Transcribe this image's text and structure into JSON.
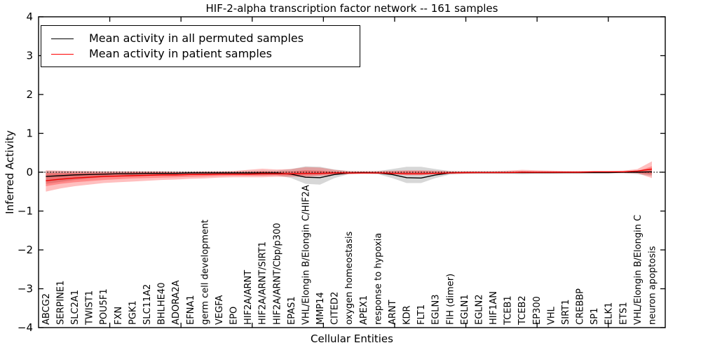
{
  "title": "HIF-2-alpha transcription factor network -- 161 samples",
  "legend": {
    "items": [
      {
        "label": "Mean activity in all permuted samples",
        "color": "#000000"
      },
      {
        "label": "Mean activity in patient samples",
        "color": "#ff0000"
      }
    ]
  },
  "chart_data": {
    "type": "line",
    "title": "HIF-2-alpha transcription factor network -- 161 samples",
    "xlabel": "Cellular Entities",
    "ylabel": "Inferred Activity",
    "ylim": [
      -4,
      4
    ],
    "yticks": [
      -4,
      -3,
      -2,
      -1,
      0,
      1,
      2,
      3,
      4
    ],
    "grid": false,
    "legend_position": "upper left",
    "categories": [
      "ABCG2",
      "SERPINE1",
      "SLC2A1",
      "TWIST1",
      "POU5F1",
      "FXN",
      "PGK1",
      "SLC11A2",
      "BHLHE40",
      "ADORA2A",
      "EFNA1",
      "germ cell development",
      "VEGFA",
      "EPO",
      "HIF2A/ARNT",
      "HIF2A/ARNT/SIRT1",
      "HIF2A/ARNT/Cbp/p300",
      "EPAS1",
      "VHL/Elongin B/Elongin C/HIF2A",
      "MMP14",
      "CITED2",
      "oxygen homeostasis",
      "APEX1",
      "response to hypoxia",
      "ARNT",
      "KDR",
      "FLT1",
      "EGLN3",
      "FIH (dimer)",
      "EGLN1",
      "EGLN2",
      "HIF1AN",
      "TCEB1",
      "TCEB2",
      "EP300",
      "VHL",
      "SIRT1",
      "CREBBP",
      "SP1",
      "ELK1",
      "ETS1",
      "VHL/Elongin B/Elongin C",
      "neuron apoptosis"
    ],
    "series": [
      {
        "name": "Mean activity in all permuted samples",
        "color": "#000000",
        "values": [
          -0.11,
          -0.09,
          -0.07,
          -0.06,
          -0.05,
          -0.04,
          -0.04,
          -0.03,
          -0.03,
          -0.03,
          -0.02,
          -0.02,
          -0.02,
          -0.02,
          -0.02,
          -0.02,
          -0.02,
          -0.05,
          -0.13,
          -0.14,
          -0.06,
          -0.02,
          -0.01,
          -0.02,
          -0.06,
          -0.14,
          -0.15,
          -0.07,
          -0.02,
          -0.01,
          -0.01,
          -0.01,
          -0.01,
          -0.01,
          -0.01,
          -0.01,
          -0.01,
          -0.01,
          -0.01,
          -0.01,
          0.0,
          0.0,
          0.01
        ]
      },
      {
        "name": "Mean activity in patient samples",
        "color": "#ee0000",
        "values": [
          -0.22,
          -0.18,
          -0.15,
          -0.13,
          -0.11,
          -0.1,
          -0.09,
          -0.08,
          -0.07,
          -0.07,
          -0.06,
          -0.06,
          -0.05,
          -0.05,
          -0.05,
          -0.04,
          -0.04,
          -0.04,
          -0.03,
          -0.03,
          -0.02,
          -0.02,
          -0.02,
          -0.02,
          -0.03,
          -0.04,
          -0.04,
          -0.03,
          -0.02,
          -0.01,
          -0.01,
          -0.01,
          -0.01,
          0.0,
          0.0,
          0.0,
          0.0,
          0.0,
          0.01,
          0.01,
          0.01,
          0.03,
          0.08
        ]
      }
    ],
    "bands": [
      {
        "name": "permuted-samples-band",
        "color": "rgba(130,130,130,0.32)",
        "upper": [
          0.03,
          0.03,
          0.03,
          0.02,
          0.02,
          0.02,
          0.02,
          0.02,
          0.02,
          0.02,
          0.02,
          0.02,
          0.02,
          0.02,
          0.03,
          0.04,
          0.04,
          0.08,
          0.15,
          0.14,
          0.07,
          0.03,
          0.02,
          0.03,
          0.08,
          0.14,
          0.14,
          0.08,
          0.03,
          0.02,
          0.02,
          0.02,
          0.02,
          0.03,
          0.02,
          0.02,
          0.02,
          0.02,
          0.02,
          0.02,
          0.02,
          0.03,
          0.05
        ],
        "lower": [
          -0.3,
          -0.25,
          -0.2,
          -0.16,
          -0.13,
          -0.11,
          -0.1,
          -0.09,
          -0.08,
          -0.08,
          -0.07,
          -0.07,
          -0.06,
          -0.06,
          -0.07,
          -0.08,
          -0.08,
          -0.15,
          -0.3,
          -0.32,
          -0.15,
          -0.05,
          -0.04,
          -0.05,
          -0.15,
          -0.28,
          -0.28,
          -0.15,
          -0.06,
          -0.04,
          -0.04,
          -0.04,
          -0.04,
          -0.05,
          -0.04,
          -0.04,
          -0.03,
          -0.03,
          -0.03,
          -0.03,
          -0.03,
          -0.05,
          -0.1
        ]
      },
      {
        "name": "patient-samples-band-outer",
        "color": "rgba(255,0,0,0.25)",
        "upper": [
          0.05,
          0.04,
          0.03,
          0.03,
          0.02,
          0.02,
          0.02,
          0.02,
          0.02,
          0.01,
          0.01,
          0.02,
          0.02,
          0.03,
          0.06,
          0.09,
          0.07,
          0.08,
          0.13,
          0.12,
          0.06,
          0.03,
          0.03,
          0.03,
          0.04,
          0.05,
          0.05,
          0.04,
          0.03,
          0.03,
          0.03,
          0.03,
          0.04,
          0.06,
          0.05,
          0.04,
          0.03,
          0.03,
          0.03,
          0.03,
          0.04,
          0.08,
          0.28
        ],
        "lower": [
          -0.5,
          -0.42,
          -0.36,
          -0.32,
          -0.28,
          -0.26,
          -0.24,
          -0.22,
          -0.2,
          -0.19,
          -0.17,
          -0.16,
          -0.14,
          -0.13,
          -0.13,
          -0.13,
          -0.12,
          -0.12,
          -0.12,
          -0.1,
          -0.07,
          -0.05,
          -0.04,
          -0.04,
          -0.05,
          -0.08,
          -0.08,
          -0.05,
          -0.04,
          -0.04,
          -0.03,
          -0.03,
          -0.03,
          -0.03,
          -0.03,
          -0.03,
          -0.03,
          -0.03,
          -0.02,
          -0.02,
          -0.02,
          -0.03,
          -0.15
        ]
      },
      {
        "name": "patient-samples-band-inner",
        "color": "rgba(255,0,0,0.28)",
        "upper": [
          -0.02,
          -0.02,
          -0.02,
          -0.02,
          -0.02,
          -0.02,
          -0.01,
          -0.01,
          -0.01,
          -0.01,
          -0.01,
          -0.01,
          -0.01,
          -0.01,
          0.0,
          0.02,
          0.01,
          0.02,
          0.05,
          0.04,
          0.01,
          0.0,
          0.0,
          0.0,
          0.01,
          0.02,
          0.02,
          0.01,
          0.0,
          0.0,
          0.0,
          0.0,
          0.01,
          0.02,
          0.01,
          0.01,
          0.01,
          0.01,
          0.01,
          0.01,
          0.02,
          0.03,
          0.15
        ],
        "lower": [
          -0.36,
          -0.3,
          -0.26,
          -0.23,
          -0.2,
          -0.18,
          -0.16,
          -0.15,
          -0.14,
          -0.13,
          -0.12,
          -0.11,
          -0.1,
          -0.09,
          -0.09,
          -0.09,
          -0.08,
          -0.08,
          -0.08,
          -0.07,
          -0.05,
          -0.04,
          -0.03,
          -0.03,
          -0.04,
          -0.06,
          -0.06,
          -0.04,
          -0.03,
          -0.03,
          -0.02,
          -0.02,
          -0.02,
          -0.02,
          -0.02,
          -0.02,
          -0.02,
          -0.02,
          -0.01,
          -0.01,
          -0.01,
          -0.02,
          -0.06
        ]
      }
    ],
    "zero_line": {
      "y": 0,
      "style": "dotted",
      "color": "#000000"
    }
  }
}
